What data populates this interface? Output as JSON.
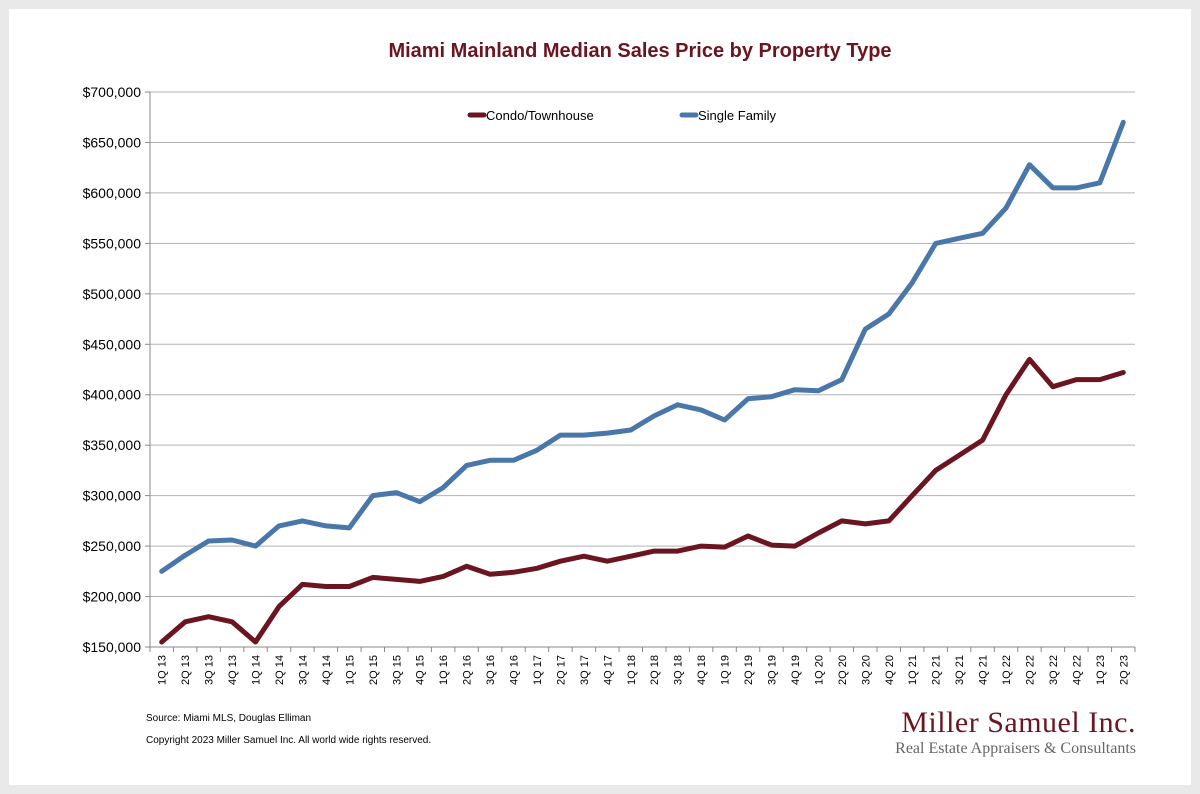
{
  "colors": {
    "condo": "#6b1521",
    "single_family": "#4a77aa",
    "title": "#6b1521",
    "grid": "#b3b3b3"
  },
  "footer": {
    "source": "Source: Miami MLS, Douglas Elliman",
    "copyright": "Copyright 2023 Miller Samuel Inc.  All world wide rights reserved."
  },
  "logo": {
    "name": "Miller Samuel Inc.",
    "tagline": "Real Estate Appraisers & Consultants"
  },
  "chart_data": {
    "type": "line",
    "title": "Miami Mainland Median Sales Price by Property Type",
    "xlabel": "",
    "ylabel": "",
    "ylim": [
      150000,
      700000
    ],
    "y_ticks": [
      150000,
      200000,
      250000,
      300000,
      350000,
      400000,
      450000,
      500000,
      550000,
      600000,
      650000,
      700000
    ],
    "y_tick_labels": [
      "$150,000",
      "$200,000",
      "$250,000",
      "$300,000",
      "$350,000",
      "$400,000",
      "$450,000",
      "$500,000",
      "$550,000",
      "$600,000",
      "$650,000",
      "$700,000"
    ],
    "grid": true,
    "legend_position": "top",
    "categories": [
      "1Q 13",
      "2Q 13",
      "3Q 13",
      "4Q 13",
      "1Q 14",
      "2Q 14",
      "3Q 14",
      "4Q 14",
      "1Q 15",
      "2Q 15",
      "3Q 15",
      "4Q 15",
      "1Q 16",
      "2Q 16",
      "3Q 16",
      "4Q 16",
      "1Q 17",
      "2Q 17",
      "3Q 17",
      "4Q 17",
      "1Q 18",
      "2Q 18",
      "3Q 18",
      "4Q 18",
      "1Q 19",
      "2Q 19",
      "3Q 19",
      "4Q 19",
      "1Q 20",
      "2Q 20",
      "3Q 20",
      "4Q 20",
      "1Q 21",
      "2Q 21",
      "3Q 21",
      "4Q 21",
      "1Q 22",
      "2Q 22",
      "3Q 22",
      "4Q 22",
      "1Q 23",
      "2Q 23"
    ],
    "series": [
      {
        "name": "Condo/Townhouse",
        "color": "#6b1521",
        "values": [
          155000,
          175000,
          180000,
          175000,
          155000,
          190000,
          212000,
          210000,
          210000,
          219000,
          217000,
          215000,
          220000,
          230000,
          222000,
          224000,
          228000,
          235000,
          240000,
          235000,
          240000,
          245000,
          245000,
          250000,
          249000,
          260000,
          251000,
          250000,
          263000,
          275000,
          272000,
          275000,
          300000,
          325000,
          340000,
          355000,
          400000,
          435000,
          408000,
          415000,
          415000,
          422000
        ]
      },
      {
        "name": "Single Family",
        "color": "#4a77aa",
        "values": [
          225000,
          241000,
          255000,
          256000,
          250000,
          270000,
          275000,
          270000,
          268000,
          300000,
          303000,
          294000,
          308000,
          330000,
          335000,
          335000,
          345000,
          360000,
          360000,
          362000,
          365000,
          379000,
          390000,
          385000,
          375000,
          396000,
          398000,
          405000,
          404000,
          415000,
          465000,
          480000,
          511000,
          550000,
          555000,
          560000,
          585000,
          628000,
          605000,
          605000,
          610000,
          670000
        ]
      }
    ]
  }
}
